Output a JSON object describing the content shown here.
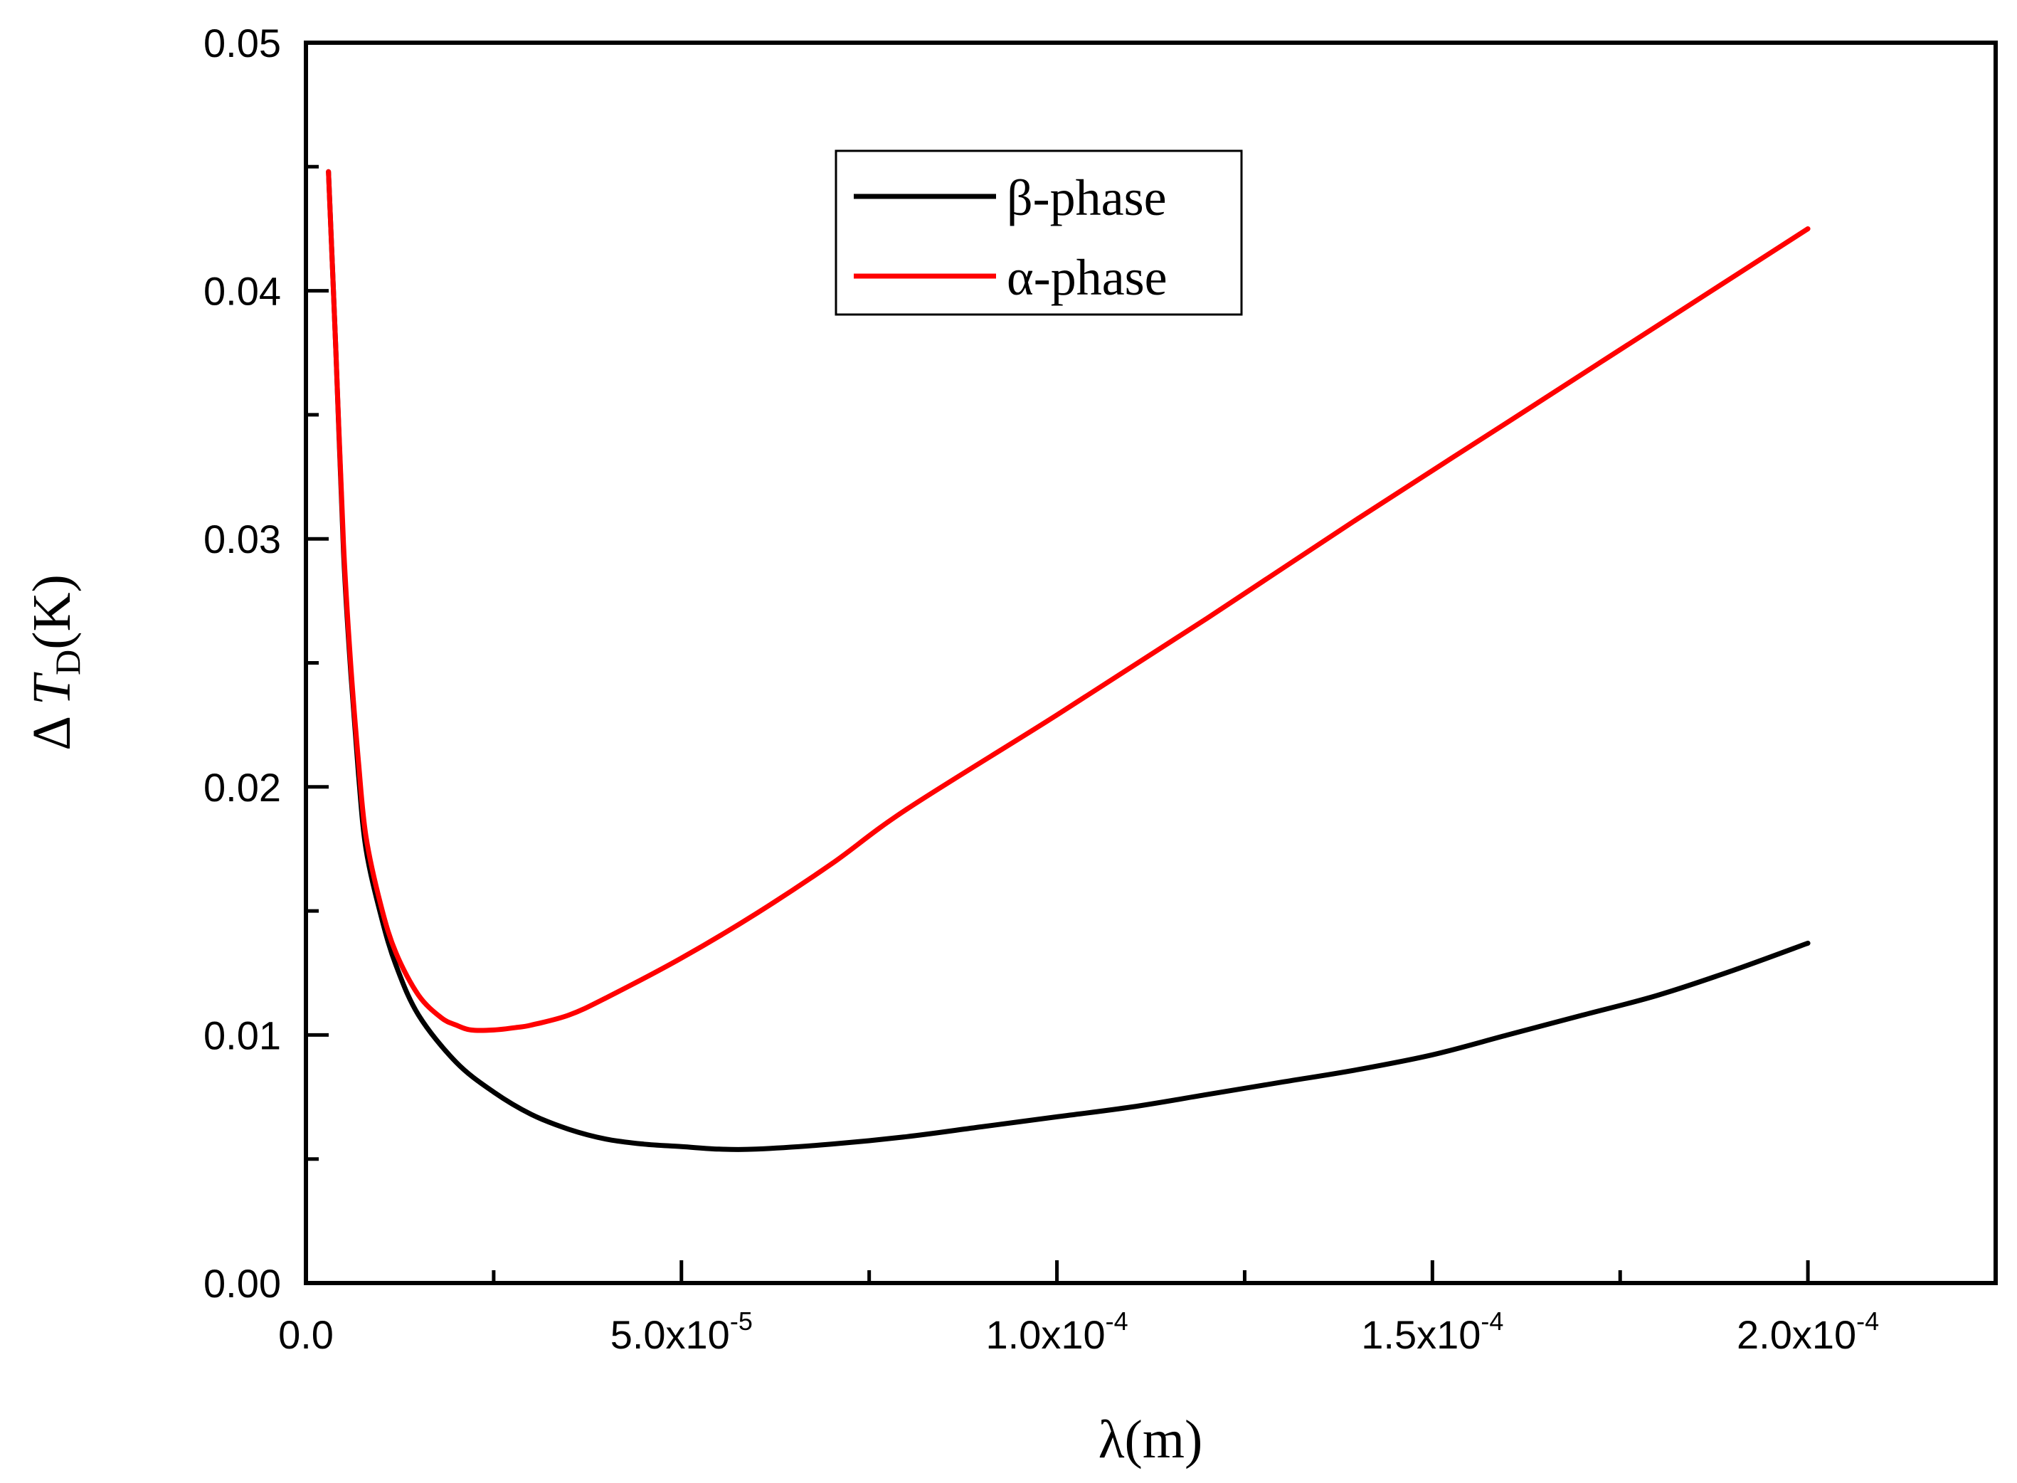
{
  "chart_data": {
    "type": "line",
    "title": "",
    "xlabel": "λ(m)",
    "ylabel": {
      "prefix": "Δ ",
      "var": "T",
      "sub": "D",
      "suffix": "(K)"
    },
    "xlim": [
      0,
      0.000225
    ],
    "ylim": [
      0,
      0.05
    ],
    "grid": false,
    "legend_position": "top-center",
    "x_ticks": [
      {
        "value": 0,
        "mantissa": "0.0",
        "exponent": ""
      },
      {
        "value": 5e-05,
        "mantissa": "5.0x10",
        "exponent": "-5"
      },
      {
        "value": 0.0001,
        "mantissa": "1.0x10",
        "exponent": "-4"
      },
      {
        "value": 0.00015,
        "mantissa": "1.5x10",
        "exponent": "-4"
      },
      {
        "value": 0.0002,
        "mantissa": "2.0x10",
        "exponent": "-4"
      }
    ],
    "x_minor_ticks": [
      2.5e-05,
      7.5e-05,
      0.000125,
      0.000175
    ],
    "y_ticks": [
      {
        "value": 0,
        "label": "0.00"
      },
      {
        "value": 0.01,
        "label": "0.01"
      },
      {
        "value": 0.02,
        "label": "0.02"
      },
      {
        "value": 0.03,
        "label": "0.03"
      },
      {
        "value": 0.04,
        "label": "0.04"
      },
      {
        "value": 0.05,
        "label": "0.05"
      }
    ],
    "y_minor_ticks": [
      0.005,
      0.015,
      0.025,
      0.035,
      0.045
    ],
    "series": [
      {
        "name": "β-phase",
        "color": "#000000",
        "x": [
          3e-06,
          4e-06,
          5e-06,
          6e-06,
          7e-06,
          8e-06,
          1e-05,
          1.2e-05,
          1.5e-05,
          2e-05,
          2.5e-05,
          3e-05,
          3.5e-05,
          4e-05,
          4.5e-05,
          5e-05,
          5.5e-05,
          6e-05,
          7e-05,
          8e-05,
          9e-05,
          0.0001,
          0.00011,
          0.00012,
          0.00013,
          0.00014,
          0.00015,
          0.00016,
          0.00017,
          0.00018,
          0.00019,
          0.0002
        ],
        "y": [
          0.0448,
          0.0375,
          0.0295,
          0.0245,
          0.0205,
          0.0175,
          0.0148,
          0.0128,
          0.0108,
          0.0089,
          0.0077,
          0.0068,
          0.0062,
          0.0058,
          0.0056,
          0.0055,
          0.0054,
          0.0054,
          0.0056,
          0.0059,
          0.0063,
          0.0067,
          0.0071,
          0.0076,
          0.0081,
          0.0086,
          0.0092,
          0.01,
          0.0108,
          0.0116,
          0.0126,
          0.0137
        ]
      },
      {
        "name": "α-phase",
        "color": "#ff0000",
        "x": [
          3e-06,
          4e-06,
          5e-06,
          6e-06,
          7e-06,
          8e-06,
          1e-05,
          1.2e-05,
          1.5e-05,
          1.8e-05,
          2e-05,
          2.2e-05,
          2.5e-05,
          2.8e-05,
          3e-05,
          3.5e-05,
          4e-05,
          5e-05,
          6e-05,
          7e-05,
          8e-05,
          0.0001,
          0.00012,
          0.00014,
          0.00016,
          0.00018,
          0.0002
        ],
        "y": [
          0.0448,
          0.0375,
          0.0298,
          0.0248,
          0.021,
          0.018,
          0.0152,
          0.0133,
          0.0116,
          0.0107,
          0.0104,
          0.0102,
          0.0102,
          0.0103,
          0.0104,
          0.0108,
          0.0115,
          0.0131,
          0.0149,
          0.0169,
          0.0191,
          0.0229,
          0.0268,
          0.0308,
          0.0347,
          0.0386,
          0.0425
        ]
      }
    ]
  }
}
